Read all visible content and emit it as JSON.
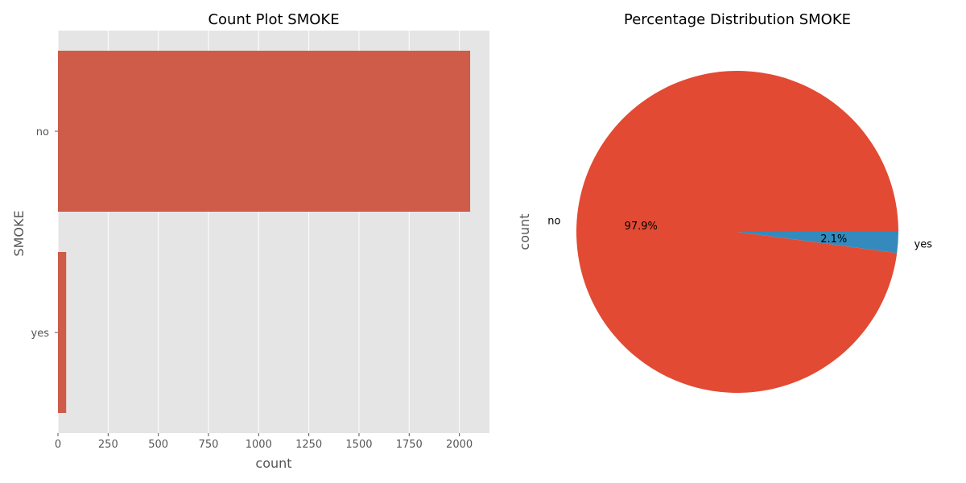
{
  "chart_data": [
    {
      "type": "bar",
      "orientation": "horizontal",
      "title": "Count Plot SMOKE",
      "xlabel": "count",
      "ylabel": "SMOKE",
      "categories": [
        "no",
        "yes"
      ],
      "values": [
        2054,
        41
      ],
      "xlim": [
        0,
        2150
      ],
      "xticks": [
        0,
        250,
        500,
        750,
        1000,
        1250,
        1500,
        1750,
        2000
      ],
      "grid": true,
      "bar_color": "#cf5b49",
      "background_color": "#e5e5e5",
      "grid_color": "#ffffff"
    },
    {
      "type": "pie",
      "title": "Percentage Distribution SMOKE",
      "ylabel": "count",
      "labels": [
        "no",
        "yes"
      ],
      "values": [
        97.9,
        2.1
      ],
      "autopct_labels": [
        "97.9%",
        "2.1%"
      ],
      "colors": [
        "#e24a33",
        "#348abd"
      ]
    }
  ]
}
